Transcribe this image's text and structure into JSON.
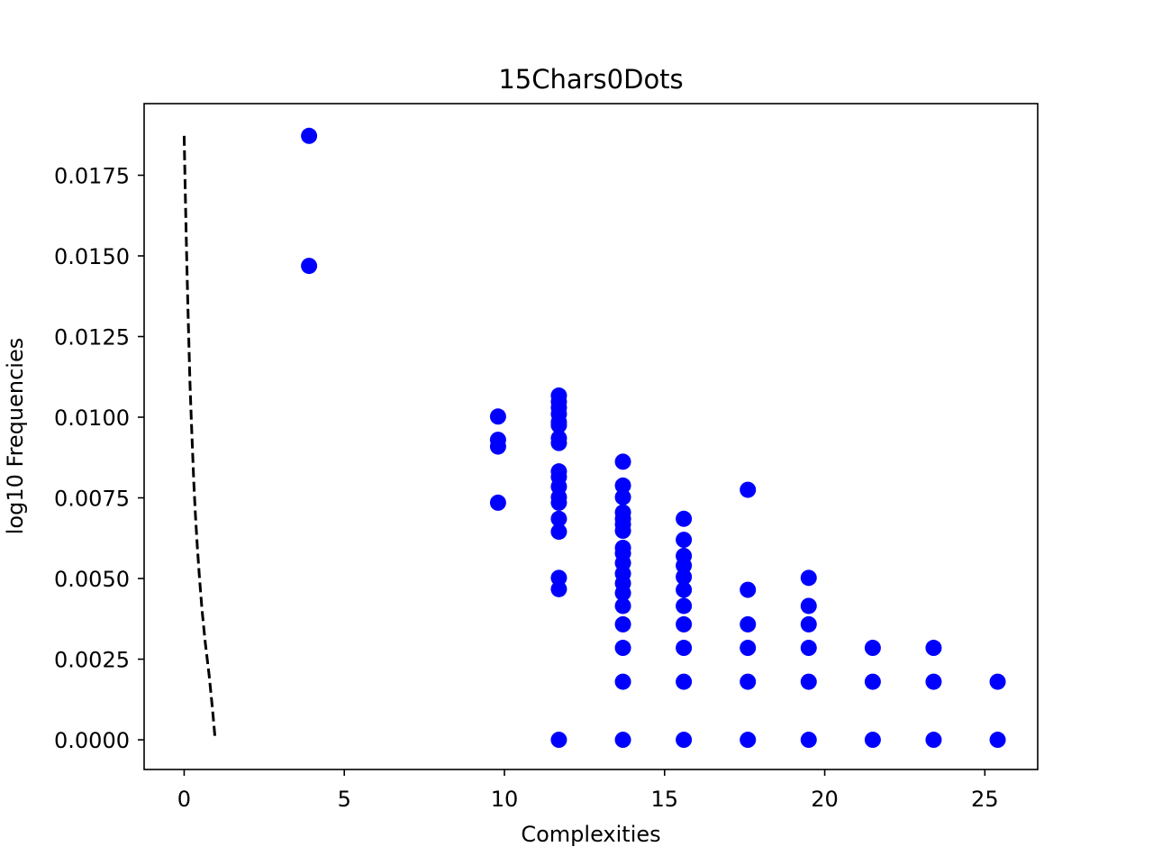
{
  "chart_data": {
    "type": "scatter",
    "title": "15Chars0Dots",
    "xlabel": "Complexities",
    "ylabel": "log10 Frequencies",
    "xlim": [
      -1.25,
      26.65
    ],
    "ylim": [
      -0.00092,
      0.01972
    ],
    "xticks": [
      0,
      5,
      10,
      15,
      20,
      25
    ],
    "xtick_labels": [
      "0",
      "5",
      "10",
      "15",
      "20",
      "25"
    ],
    "yticks": [
      0,
      0.0025,
      0.005,
      0.0075,
      0.01,
      0.0125,
      0.015,
      0.0175
    ],
    "ytick_labels": [
      "0.0000",
      "0.0025",
      "0.0050",
      "0.0075",
      "0.0100",
      "0.0125",
      "0.0150",
      "0.0175"
    ],
    "grid": false,
    "legend": "none",
    "series": [
      {
        "kind": "scatter",
        "color": "#0000ff",
        "points": [
          [
            3.9,
            0.01872
          ],
          [
            3.9,
            0.01469
          ],
          [
            9.8,
            0.01002
          ],
          [
            9.8,
            0.0093
          ],
          [
            9.8,
            0.00909
          ],
          [
            9.8,
            0.00735
          ],
          [
            11.7,
            0.01067
          ],
          [
            11.7,
            0.01048
          ],
          [
            11.7,
            0.0103
          ],
          [
            11.7,
            0.0101
          ],
          [
            11.7,
            0.00985
          ],
          [
            11.7,
            0.00975
          ],
          [
            11.7,
            0.00935
          ],
          [
            11.7,
            0.0092
          ],
          [
            11.7,
            0.00832
          ],
          [
            11.7,
            0.00815
          ],
          [
            11.7,
            0.00785
          ],
          [
            11.7,
            0.00752
          ],
          [
            11.7,
            0.00735
          ],
          [
            11.7,
            0.00685
          ],
          [
            11.7,
            0.00645
          ],
          [
            11.7,
            0.00502
          ],
          [
            11.7,
            0.00467
          ],
          [
            11.7,
            0.0
          ],
          [
            13.7,
            0.00862
          ],
          [
            13.7,
            0.00788
          ],
          [
            13.7,
            0.00752
          ],
          [
            13.7,
            0.00705
          ],
          [
            13.7,
            0.00685
          ],
          [
            13.7,
            0.00668
          ],
          [
            13.7,
            0.00648
          ],
          [
            13.7,
            0.00595
          ],
          [
            13.7,
            0.00578
          ],
          [
            13.7,
            0.00548
          ],
          [
            13.7,
            0.00515
          ],
          [
            13.7,
            0.00485
          ],
          [
            13.7,
            0.00455
          ],
          [
            13.7,
            0.00415
          ],
          [
            13.7,
            0.00358
          ],
          [
            13.7,
            0.00285
          ],
          [
            13.7,
            0.0018
          ],
          [
            13.7,
            0.0
          ],
          [
            15.6,
            0.00685
          ],
          [
            15.6,
            0.0062
          ],
          [
            15.6,
            0.0057
          ],
          [
            15.6,
            0.0054
          ],
          [
            15.6,
            0.00505
          ],
          [
            15.6,
            0.00465
          ],
          [
            15.6,
            0.00415
          ],
          [
            15.6,
            0.00358
          ],
          [
            15.6,
            0.00285
          ],
          [
            15.6,
            0.0018
          ],
          [
            15.6,
            0.0
          ],
          [
            17.6,
            0.00775
          ],
          [
            17.6,
            0.00465
          ],
          [
            17.6,
            0.00358
          ],
          [
            17.6,
            0.00285
          ],
          [
            17.6,
            0.0018
          ],
          [
            17.6,
            0.0
          ],
          [
            19.5,
            0.00502
          ],
          [
            19.5,
            0.00415
          ],
          [
            19.5,
            0.00358
          ],
          [
            19.5,
            0.00285
          ],
          [
            19.5,
            0.0018
          ],
          [
            19.5,
            0.0
          ],
          [
            21.5,
            0.00285
          ],
          [
            21.5,
            0.0018
          ],
          [
            21.5,
            0.0
          ],
          [
            23.4,
            0.00285
          ],
          [
            23.4,
            0.0018
          ],
          [
            23.4,
            0.0
          ],
          [
            25.4,
            0.0018
          ],
          [
            25.4,
            0.0
          ]
        ]
      },
      {
        "kind": "line",
        "style": "dashed",
        "color": "#000000",
        "points": [
          [
            0.0,
            0.01872
          ],
          [
            0.03,
            0.0172
          ],
          [
            0.06,
            0.0158
          ],
          [
            0.09,
            0.0145
          ],
          [
            0.12,
            0.0133
          ],
          [
            0.15,
            0.0122
          ],
          [
            0.18,
            0.0111
          ],
          [
            0.22,
            0.01
          ],
          [
            0.26,
            0.009
          ],
          [
            0.3,
            0.008
          ],
          [
            0.35,
            0.007
          ],
          [
            0.41,
            0.006
          ],
          [
            0.48,
            0.005
          ],
          [
            0.56,
            0.004
          ],
          [
            0.66,
            0.003
          ],
          [
            0.78,
            0.002
          ],
          [
            0.88,
            0.001
          ],
          [
            0.97,
            0.0
          ]
        ]
      }
    ]
  }
}
